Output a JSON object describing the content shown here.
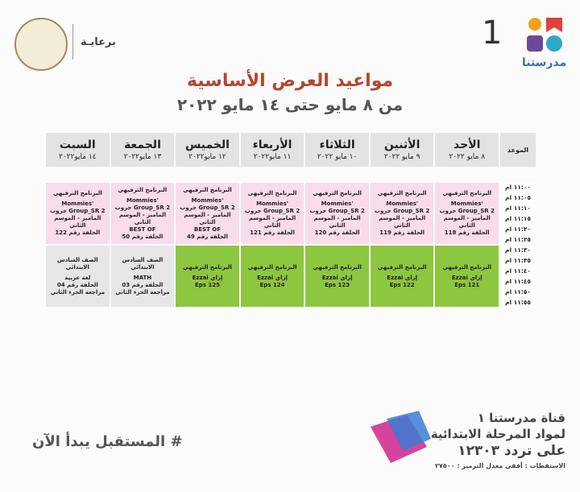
{
  "header": {
    "sponsor": "برعايـة",
    "brand": "مدرستنا",
    "brand_number": "1"
  },
  "title": "مواعيد العرض الأساسية",
  "subtitle": "من ٨ مايو حتى ١٤ مايو ٢٠٢٢",
  "table": {
    "time_header": "الموعد",
    "days": [
      {
        "name": "الأحد",
        "date": "٨ مايو ٢٠٢٢"
      },
      {
        "name": "الأثنين",
        "date": "٩ مايو ٢٠٢٢"
      },
      {
        "name": "الثلاثاء",
        "date": "١٠ مايو ٢٠٢٢"
      },
      {
        "name": "الأربعاء",
        "date": "١١ مايو٢٠٢٢"
      },
      {
        "name": "الخميس",
        "date": "١٢ مايو٢٠٢٢"
      },
      {
        "name": "الجمعة",
        "date": "١٣ مايو٢٠٢٢"
      },
      {
        "name": "السبت",
        "date": "١٤ مايو٢٠٢٢"
      }
    ],
    "times": [
      "١١:٠٠ ام",
      "١١:٠٥ ام",
      "١١:١٠ ام",
      "١١:١٥ ام",
      "١١:٢٠ ام",
      "١١:٢٥ ام",
      "١١:٣٠ ام",
      "١١:٣٥ ام",
      "١١:٤٠ ام",
      "١١:٤٥ ام",
      "١١:٥٠ ام",
      "١١:٥٥ ام"
    ],
    "blocks": [
      {
        "cells": [
          {
            "lines": [
              "البرنامج الترفيهي",
              "Mommies' Group_SR 2 جروب المامبز - الموسم الثاني",
              "الحلقة رقم 118"
            ]
          },
          {
            "lines": [
              "البرنامج الترفيهي",
              "Mommies' Group_SR 2 جروب المامبز - الموسم الثاني",
              "الحلقة رقم 119"
            ]
          },
          {
            "lines": [
              "البرنامج الترفيهي",
              "Mommies' Group_SR 2 جروب المامبز - الموسم الثاني",
              "الحلقة رقم 120"
            ]
          },
          {
            "lines": [
              "البرنامج الترفيهي",
              "Mommies' Group_SR 2 جروب المامبز - الموسم الثاني",
              "الحلقة رقم 121"
            ]
          },
          {
            "lines": [
              "البرنامج الترفيهي",
              "Mommies' Group_SR 2 جروب المامبز - الموسم الثاني",
              "BEST OF",
              "الحلقة رقم 49"
            ]
          },
          {
            "lines": [
              "البرنامج الترفيهي",
              "Mommies' Group_SR 2 جروب المامبز - الموسم الثاني",
              "BEST OF",
              "الحلقة رقم 50"
            ]
          },
          {
            "lines": [
              "البرنامج الترفيهي",
              "Mommies' Group_SR 2 جروب المامبز - الموسم الثاني",
              "الحلقة رقم 122"
            ]
          }
        ]
      },
      {
        "cells": [
          {
            "lines": [
              "البرنامج الترفيهي",
              "إزاي Ezzai",
              "Eps 121"
            ]
          },
          {
            "lines": [
              "البرنامج الترفيهي",
              "إزاي Ezzai",
              "Eps 122"
            ]
          },
          {
            "lines": [
              "البرنامج الترفيهي",
              "إزاي Ezzai",
              "Eps 123"
            ]
          },
          {
            "lines": [
              "البرنامج الترفيهي",
              "إزاي Ezzai",
              "Eps 124"
            ]
          },
          {
            "lines": [
              "البرنامج الترفيهي",
              "إزاي Ezzai",
              "Eps 125"
            ]
          },
          {
            "lines": [
              "الصف السادس الابتدائي",
              "MATH",
              "الحلقة رقم 03 مراجعة الجزء الثاني"
            ]
          },
          {
            "lines": [
              "الصف السادس الابتدائي",
              "لغة عربية",
              "الحلقة رقم 04 مراجعة الجزء الثاني"
            ]
          }
        ]
      }
    ]
  },
  "footer": {
    "slogan": "# المستقبل يبدأ الآن",
    "channel": "قناة مدرستنا ١",
    "subjects": "لمواد المرحلة الابتدائية",
    "frequency": "على تردد ١٢٣٠٣",
    "specs": "الاستقطاب : أفقي معدل الترميز : ٢٧٥٠٠"
  }
}
